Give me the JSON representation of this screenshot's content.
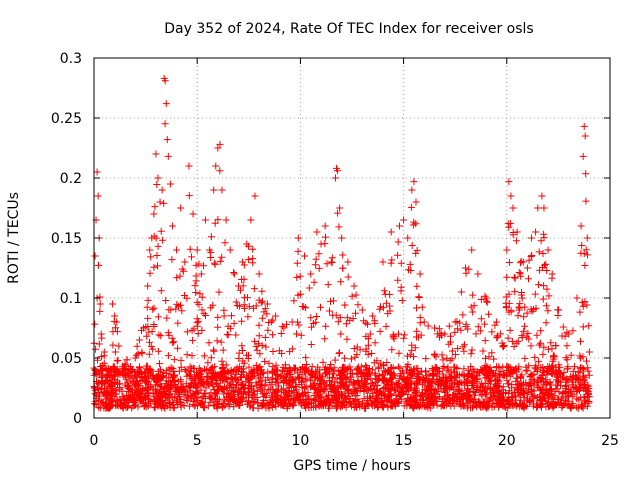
{
  "chart_data": {
    "type": "scatter",
    "title": "Day 352 of 2024, Rate Of TEC Index for receiver osls",
    "xlabel": "GPS time / hours",
    "ylabel": "ROTI / TECUs",
    "xlim": [
      0,
      25
    ],
    "ylim": [
      0,
      0.3
    ],
    "grid": true,
    "marker": "+",
    "color": "#ff0000",
    "x_ticks": [
      0,
      5,
      10,
      15,
      20,
      25
    ],
    "x_tick_labels": [
      "0",
      "5",
      "10",
      "15",
      "20",
      "25"
    ],
    "y_ticks": [
      0,
      0.05,
      0.1,
      0.15,
      0.2,
      0.25,
      0.3
    ],
    "y_tick_labels": [
      "0",
      "0.05",
      "0.1",
      "0.15",
      "0.2",
      "0.25",
      "0.3"
    ],
    "series": [
      {
        "name": "ROTI",
        "points": [
          [
            0.05,
            0.135
          ],
          [
            0.1,
            0.165
          ],
          [
            0.15,
            0.205
          ],
          [
            0.2,
            0.185
          ],
          [
            0.25,
            0.15
          ],
          [
            0.3,
            0.095
          ],
          [
            0.35,
            0.07
          ],
          [
            0.5,
            0.055
          ],
          [
            0.7,
            0.04
          ],
          [
            0.9,
            0.095
          ],
          [
            1.0,
            0.085
          ],
          [
            1.1,
            0.08
          ],
          [
            1.2,
            0.06
          ],
          [
            1.5,
            0.045
          ],
          [
            1.8,
            0.04
          ],
          [
            2.0,
            0.05
          ],
          [
            2.2,
            0.065
          ],
          [
            2.4,
            0.075
          ],
          [
            2.6,
            0.11
          ],
          [
            2.7,
            0.14
          ],
          [
            2.8,
            0.15
          ],
          [
            2.9,
            0.17
          ],
          [
            3.0,
            0.22
          ],
          [
            3.1,
            0.2
          ],
          [
            3.2,
            0.18
          ],
          [
            3.3,
            0.19
          ],
          [
            3.4,
            0.283
          ],
          [
            3.45,
            0.281
          ],
          [
            3.5,
            0.262
          ],
          [
            3.55,
            0.232
          ],
          [
            3.6,
            0.218
          ],
          [
            3.7,
            0.195
          ],
          [
            3.8,
            0.16
          ],
          [
            4.0,
            0.14
          ],
          [
            4.2,
            0.175
          ],
          [
            4.4,
            0.13
          ],
          [
            4.6,
            0.21
          ],
          [
            4.8,
            0.17
          ],
          [
            5.0,
            0.14
          ],
          [
            5.2,
            0.12
          ],
          [
            5.4,
            0.165
          ],
          [
            5.6,
            0.14
          ],
          [
            5.8,
            0.19
          ],
          [
            5.9,
            0.21
          ],
          [
            6.0,
            0.225
          ],
          [
            6.1,
            0.228
          ],
          [
            6.2,
            0.19
          ],
          [
            6.4,
            0.165
          ],
          [
            6.6,
            0.14
          ],
          [
            6.8,
            0.12
          ],
          [
            7.0,
            0.11
          ],
          [
            7.2,
            0.13
          ],
          [
            7.4,
            0.145
          ],
          [
            7.6,
            0.165
          ],
          [
            7.8,
            0.185
          ],
          [
            8.0,
            0.12
          ],
          [
            8.4,
            0.095
          ],
          [
            8.8,
            0.085
          ],
          [
            9.2,
            0.075
          ],
          [
            9.6,
            0.08
          ],
          [
            9.9,
            0.15
          ],
          [
            10.2,
            0.135
          ],
          [
            10.5,
            0.12
          ],
          [
            10.8,
            0.155
          ],
          [
            11.0,
            0.145
          ],
          [
            11.2,
            0.16
          ],
          [
            11.5,
            0.13
          ],
          [
            11.7,
            0.2
          ],
          [
            11.75,
            0.208
          ],
          [
            11.8,
            0.206
          ],
          [
            11.9,
            0.175
          ],
          [
            12.0,
            0.15
          ],
          [
            12.3,
            0.13
          ],
          [
            12.6,
            0.11
          ],
          [
            13.0,
            0.09
          ],
          [
            13.5,
            0.085
          ],
          [
            14.0,
            0.13
          ],
          [
            14.4,
            0.155
          ],
          [
            14.8,
            0.16
          ],
          [
            15.0,
            0.165
          ],
          [
            15.2,
            0.15
          ],
          [
            15.4,
            0.19
          ],
          [
            15.5,
            0.197
          ],
          [
            15.6,
            0.18
          ],
          [
            15.8,
            0.12
          ],
          [
            16.0,
            0.08
          ],
          [
            16.5,
            0.075
          ],
          [
            17.0,
            0.07
          ],
          [
            17.5,
            0.08
          ],
          [
            17.8,
            0.105
          ],
          [
            18.0,
            0.125
          ],
          [
            18.3,
            0.14
          ],
          [
            18.6,
            0.12
          ],
          [
            19.0,
            0.1
          ],
          [
            19.5,
            0.08
          ],
          [
            19.8,
            0.06
          ],
          [
            20.0,
            0.14
          ],
          [
            20.1,
            0.197
          ],
          [
            20.2,
            0.185
          ],
          [
            20.3,
            0.175
          ],
          [
            20.5,
            0.155
          ],
          [
            20.8,
            0.13
          ],
          [
            21.0,
            0.125
          ],
          [
            21.2,
            0.15
          ],
          [
            21.5,
            0.175
          ],
          [
            21.7,
            0.185
          ],
          [
            21.8,
            0.175
          ],
          [
            22.0,
            0.14
          ],
          [
            22.2,
            0.12
          ],
          [
            22.5,
            0.09
          ],
          [
            23.0,
            0.07
          ],
          [
            23.4,
            0.1
          ],
          [
            23.6,
            0.16
          ],
          [
            23.7,
            0.218
          ],
          [
            23.75,
            0.243
          ],
          [
            23.8,
            0.235
          ],
          [
            23.9,
            0.15
          ],
          [
            24.0,
            0.055
          ]
        ]
      }
    ]
  }
}
